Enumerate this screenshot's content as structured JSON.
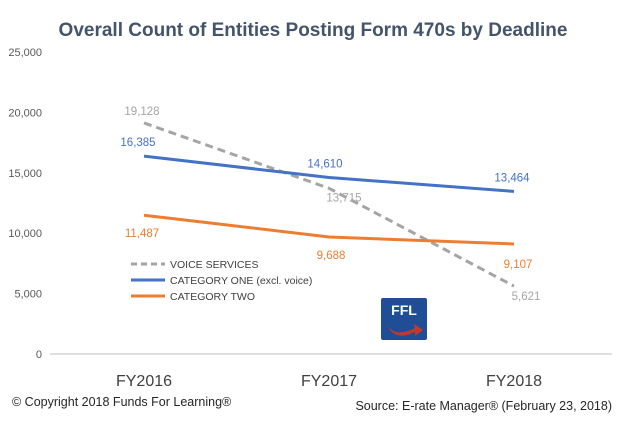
{
  "chart_data": {
    "type": "line",
    "title": "Overall Count of Entities Posting Form 470s by Deadline",
    "categories": [
      "FY2016",
      "FY2017",
      "FY2018"
    ],
    "ylim": [
      0,
      25000
    ],
    "yticks": [
      0,
      5000,
      10000,
      15000,
      20000,
      25000
    ],
    "ytick_labels": [
      "0",
      "5,000",
      "10,000",
      "15,000",
      "20,000",
      "25,000"
    ],
    "grid": false,
    "legend_position": "lower-left",
    "series": [
      {
        "name": "VOICE SERVICES",
        "values": [
          19128,
          13715,
          5621
        ],
        "labels": [
          "19,128",
          "13,715",
          "5,621"
        ],
        "color": "#a5a5a5",
        "label_color": "#a5a5a5",
        "dashed": true
      },
      {
        "name": "CATEGORY ONE (excl. voice)",
        "values": [
          16385,
          14610,
          13464
        ],
        "labels": [
          "16,385",
          "14,610",
          "13,464"
        ],
        "color": "#4472c4",
        "label_color": "#4472c4",
        "dashed": false
      },
      {
        "name": "CATEGORY TWO",
        "values": [
          11487,
          9688,
          9107
        ],
        "labels": [
          "11,487",
          "9,688",
          "9,107"
        ],
        "color": "#ed7d31",
        "label_color": "#ed7d31",
        "dashed": false
      }
    ]
  },
  "logo": {
    "text": "FFL",
    "bg_color": "#1f4e96",
    "arrow_color": "#c0392b"
  },
  "footer": {
    "copyright": "© Copyright 2018 Funds For Learning®",
    "source": "Source: E-rate Manager® (February 23, 2018)"
  }
}
